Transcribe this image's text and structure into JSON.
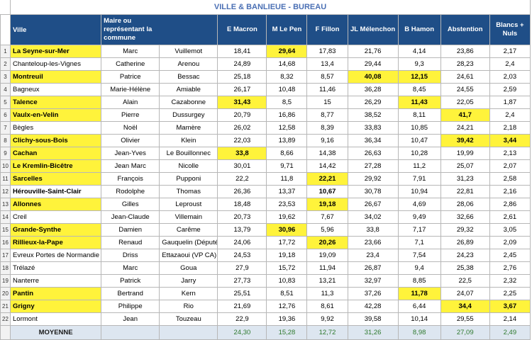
{
  "sheet": {
    "title": "VILLE & BANLIEUE - BUREAU",
    "headers": {
      "ville": "Ville",
      "maire": "Maire ou représentant la commune",
      "macron": "E Macron",
      "lepen": "M  Le Pen",
      "fillon": "F Fillon",
      "melenchon": "JL Mélenchon",
      "hamon": "B Hamon",
      "abstention": "Abstention",
      "blancs": "Blancs + Nuls"
    },
    "rows": [
      {
        "n": "1",
        "city": "La Seyne-sur-Mer",
        "first": "Marc",
        "last": "Vuillemot",
        "macron": "18,41",
        "lepen": "29,64",
        "fillon": "17,83",
        "melenchon": "21,76",
        "hamon": "4,14",
        "abstention": "23,86",
        "blancs": "2,17"
      },
      {
        "n": "2",
        "city": "Chanteloup-les-Vignes",
        "first": "Catherine",
        "last": "Arenou",
        "macron": "24,89",
        "lepen": "14,68",
        "fillon": "13,4",
        "melenchon": "29,44",
        "hamon": "9,3",
        "abstention": "28,23",
        "blancs": "2,4"
      },
      {
        "n": "3",
        "city": "Montreuil",
        "first": "Patrice",
        "last": "Bessac",
        "macron": "25,18",
        "lepen": "8,32",
        "fillon": "8,57",
        "melenchon": "40,08",
        "hamon": "12,15",
        "abstention": "24,61",
        "blancs": "2,03"
      },
      {
        "n": "4",
        "city": "Bagneux",
        "first": "Marie-Hélène",
        "last": "Amiable",
        "macron": "26,17",
        "lepen": "10,48",
        "fillon": "11,46",
        "melenchon": "36,28",
        "hamon": "8,45",
        "abstention": "24,55",
        "blancs": "2,59"
      },
      {
        "n": "5",
        "city": "Talence",
        "first": "Alain",
        "last": "Cazabonne",
        "macron": "31,43",
        "lepen": "8,5",
        "fillon": "15",
        "melenchon": "26,29",
        "hamon": "11,43",
        "abstention": "22,05",
        "blancs": "1,87"
      },
      {
        "n": "6",
        "city": "Vaulx-en-Velin",
        "first": "Pierre",
        "last": "Dussurgey",
        "macron": "20,79",
        "lepen": "16,86",
        "fillon": "8,77",
        "melenchon": "38,52",
        "hamon": "8,11",
        "abstention": "41,7",
        "blancs": "2,4"
      },
      {
        "n": "7",
        "city": "Bègles",
        "first": "Noël",
        "last": "Mamère",
        "macron": "26,02",
        "lepen": "12,58",
        "fillon": "8,39",
        "melenchon": "33,83",
        "hamon": "10,85",
        "abstention": "24,21",
        "blancs": "2,18"
      },
      {
        "n": "8",
        "city": "Clichy-sous-Bois",
        "first": "Olivier",
        "last": "Klein",
        "macron": "22,03",
        "lepen": "13,89",
        "fillon": "9,16",
        "melenchon": "36,34",
        "hamon": "10,47",
        "abstention": "39,42",
        "blancs": "3,44"
      },
      {
        "n": "9",
        "city": "Cachan",
        "first": "Jean-Yves",
        "last": "Le Bouillonnec",
        "macron": "33,8",
        "lepen": "8,66",
        "fillon": "14,38",
        "melenchon": "26,63",
        "hamon": "10,28",
        "abstention": "19,99",
        "blancs": "2,13"
      },
      {
        "n": "10",
        "city": "Le Kremlin-Bicêtre",
        "first": "Jean Marc",
        "last": "Nicolle",
        "macron": "30,01",
        "lepen": "9,71",
        "fillon": "14,42",
        "melenchon": "27,28",
        "hamon": "11,2",
        "abstention": "25,07",
        "blancs": "2,07"
      },
      {
        "n": "11",
        "city": "Sarcelles",
        "first": "François",
        "last": "Pupponi",
        "macron": "22,2",
        "lepen": "11,8",
        "fillon": "22,21",
        "melenchon": "29,92",
        "hamon": "7,91",
        "abstention": "31,23",
        "blancs": "2,58"
      },
      {
        "n": "12",
        "city": "Hérouville-Saint-Clair",
        "first": "Rodolphe",
        "last": "Thomas",
        "macron": "26,36",
        "lepen": "13,37",
        "fillon": "10,67",
        "melenchon": "30,78",
        "hamon": "10,94",
        "abstention": "22,81",
        "blancs": "2,16"
      },
      {
        "n": "13",
        "city": "Allonnes",
        "first": "Gilles",
        "last": "Leproust",
        "macron": "18,48",
        "lepen": "23,53",
        "fillon": "19,18",
        "melenchon": "26,67",
        "hamon": "4,69",
        "abstention": "28,06",
        "blancs": "2,86"
      },
      {
        "n": "14",
        "city": "Creil",
        "first": "Jean-Claude",
        "last": "Villemain",
        "macron": "20,73",
        "lepen": "19,62",
        "fillon": "7,67",
        "melenchon": "34,02",
        "hamon": "9,49",
        "abstention": "32,66",
        "blancs": "2,61"
      },
      {
        "n": "15",
        "city": "Grande-Synthe",
        "first": "Damien",
        "last": "Carême",
        "macron": "13,79",
        "lepen": "30,96",
        "fillon": "5,96",
        "melenchon": "33,8",
        "hamon": "7,17",
        "abstention": "29,32",
        "blancs": "3,05"
      },
      {
        "n": "16",
        "city": "Rillieux-la-Pape",
        "first": "Renaud",
        "last": "Gauquelin (Député)",
        "macron": "24,06",
        "lepen": "17,72",
        "fillon": "20,26",
        "melenchon": "23,66",
        "hamon": "7,1",
        "abstention": "26,89",
        "blancs": "2,09"
      },
      {
        "n": "17",
        "city": "Evreux Portes de Normandie",
        "first": "Driss",
        "last": "Ettazaoui (VP CA)",
        "macron": "24,53",
        "lepen": "19,18",
        "fillon": "19,09",
        "melenchon": "23,4",
        "hamon": "7,54",
        "abstention": "24,23",
        "blancs": "2,45"
      },
      {
        "n": "18",
        "city": "Trélazé",
        "first": "Marc",
        "last": "Goua",
        "macron": "27,9",
        "lepen": "15,72",
        "fillon": "11,94",
        "melenchon": "26,87",
        "hamon": "9,4",
        "abstention": "25,38",
        "blancs": "2,76"
      },
      {
        "n": "19",
        "city": "Nanterre",
        "first": "Patrick",
        "last": "Jarry",
        "macron": "27,73",
        "lepen": "10,83",
        "fillon": "13,21",
        "melenchon": "32,97",
        "hamon": "8,85",
        "abstention": "22,5",
        "blancs": "2,32"
      },
      {
        "n": "20",
        "city": "Pantin",
        "first": "Bertrand",
        "last": "Kern",
        "macron": "25,51",
        "lepen": "8,51",
        "fillon": "11,3",
        "melenchon": "37,26",
        "hamon": "11,78",
        "abstention": "24,07",
        "blancs": "2,25"
      },
      {
        "n": "21",
        "city": "Grigny",
        "first": "Philippe",
        "last": "Rio",
        "macron": "21,69",
        "lepen": "12,76",
        "fillon": "8,61",
        "melenchon": "42,28",
        "hamon": "6,44",
        "abstention": "34,4",
        "blancs": "3,67"
      },
      {
        "n": "22",
        "city": "Lormont",
        "first": "Jean",
        "last": "Touzeau",
        "macron": "22,9",
        "lepen": "19,36",
        "fillon": "9,92",
        "melenchon": "39,58",
        "hamon": "10,14",
        "abstention": "29,55",
        "blancs": "2,14"
      }
    ],
    "average": {
      "label": "MOYENNE",
      "macron": "24,30",
      "lepen": "15,28",
      "fillon": "12,72",
      "melenchon": "31,26",
      "hamon": "8,98",
      "abstention": "27,09",
      "blancs": "2,49"
    },
    "highlights": [
      {
        "row": 1,
        "col": "city"
      },
      {
        "row": 1,
        "col": "lepen"
      },
      {
        "row": 3,
        "col": "city"
      },
      {
        "row": 3,
        "col": "melenchon"
      },
      {
        "row": 3,
        "col": "hamon"
      },
      {
        "row": 5,
        "col": "city"
      },
      {
        "row": 5,
        "col": "macron"
      },
      {
        "row": 5,
        "col": "hamon"
      },
      {
        "row": 6,
        "col": "city"
      },
      {
        "row": 6,
        "col": "abstention"
      },
      {
        "row": 8,
        "col": "city"
      },
      {
        "row": 8,
        "col": "abstention"
      },
      {
        "row": 8,
        "col": "blancs"
      },
      {
        "row": 9,
        "col": "city"
      },
      {
        "row": 9,
        "col": "macron"
      },
      {
        "row": 10,
        "col": "city"
      },
      {
        "row": 11,
        "col": "city"
      },
      {
        "row": 11,
        "col": "fillon"
      },
      {
        "row": 13,
        "col": "city"
      },
      {
        "row": 13,
        "col": "fillon"
      },
      {
        "row": 15,
        "col": "city"
      },
      {
        "row": 15,
        "col": "lepen"
      },
      {
        "row": 16,
        "col": "city"
      },
      {
        "row": 16,
        "col": "fillon"
      },
      {
        "row": 20,
        "col": "city"
      },
      {
        "row": 20,
        "col": "hamon"
      },
      {
        "row": 21,
        "col": "city"
      },
      {
        "row": 21,
        "col": "abstention"
      },
      {
        "row": 21,
        "col": "blancs"
      }
    ],
    "bold_cells": [
      {
        "row": 12,
        "col": "city"
      },
      {
        "row": 12,
        "col": "fillon"
      }
    ],
    "colors": {
      "header_bg": "#1f4e87",
      "title_text": "#4a6fb4",
      "highlight": "#fff33b",
      "average_bg": "#dde6f0",
      "average_values": "#2f7a2f"
    }
  }
}
